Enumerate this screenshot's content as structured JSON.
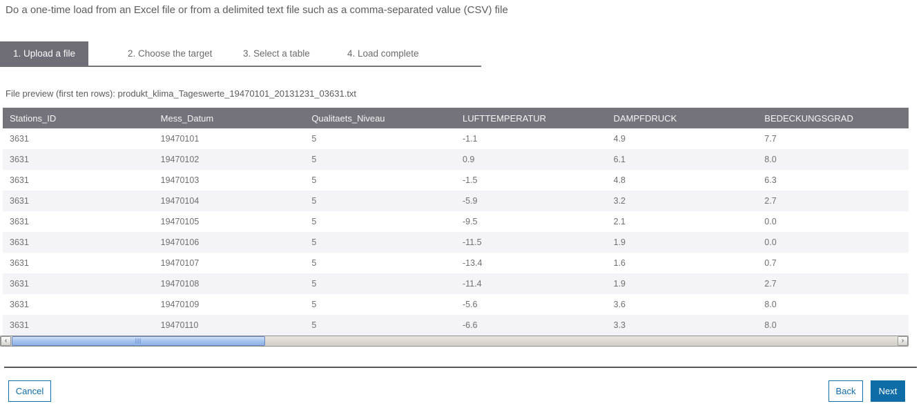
{
  "page": {
    "title": "Do a one-time load from an Excel file or from a delimited text file such as a comma-separated value (CSV) file"
  },
  "steps": [
    {
      "label": "1. Upload a file",
      "active": true
    },
    {
      "label": "2. Choose the target",
      "active": false
    },
    {
      "label": "3. Select a table",
      "active": false
    },
    {
      "label": "4. Load complete",
      "active": false
    }
  ],
  "preview": {
    "label": "File preview (first ten rows):",
    "filename": "produkt_klima_Tageswerte_19470101_20131231_03631.txt"
  },
  "table": {
    "columns": [
      "Stations_ID",
      "Mess_Datum",
      "Qualitaets_Niveau",
      "LUFTTEMPERATUR",
      "DAMPFDRUCK",
      "BEDECKUNGSGRAD"
    ],
    "rows": [
      [
        "3631",
        "19470101",
        "5",
        "-1.1",
        "4.9",
        "7.7"
      ],
      [
        "3631",
        "19470102",
        "5",
        "0.9",
        "6.1",
        "8.0"
      ],
      [
        "3631",
        "19470103",
        "5",
        "-1.5",
        "4.8",
        "6.3"
      ],
      [
        "3631",
        "19470104",
        "5",
        "-5.9",
        "3.2",
        "2.7"
      ],
      [
        "3631",
        "19470105",
        "5",
        "-9.5",
        "2.1",
        "0.0"
      ],
      [
        "3631",
        "19470106",
        "5",
        "-11.5",
        "1.9",
        "0.0"
      ],
      [
        "3631",
        "19470107",
        "5",
        "-13.4",
        "1.6",
        "0.7"
      ],
      [
        "3631",
        "19470108",
        "5",
        "-11.4",
        "1.9",
        "2.7"
      ],
      [
        "3631",
        "19470109",
        "5",
        "-5.6",
        "3.6",
        "8.0"
      ],
      [
        "3631",
        "19470110",
        "5",
        "-6.6",
        "3.3",
        "8.0"
      ]
    ]
  },
  "icons": {
    "scroll_left": "‹",
    "scroll_right": "›",
    "thumb_grip": "|||"
  },
  "buttons": {
    "cancel": "Cancel",
    "back": "Back",
    "next": "Next"
  },
  "colors": {
    "accent_blue": "#0e6da6",
    "table_header_gray": "#74737b",
    "active_tab_gray": "#6f6e76",
    "row_alt": "#f4f4f8",
    "scroll_thumb_blue": "#a9c6ef"
  }
}
